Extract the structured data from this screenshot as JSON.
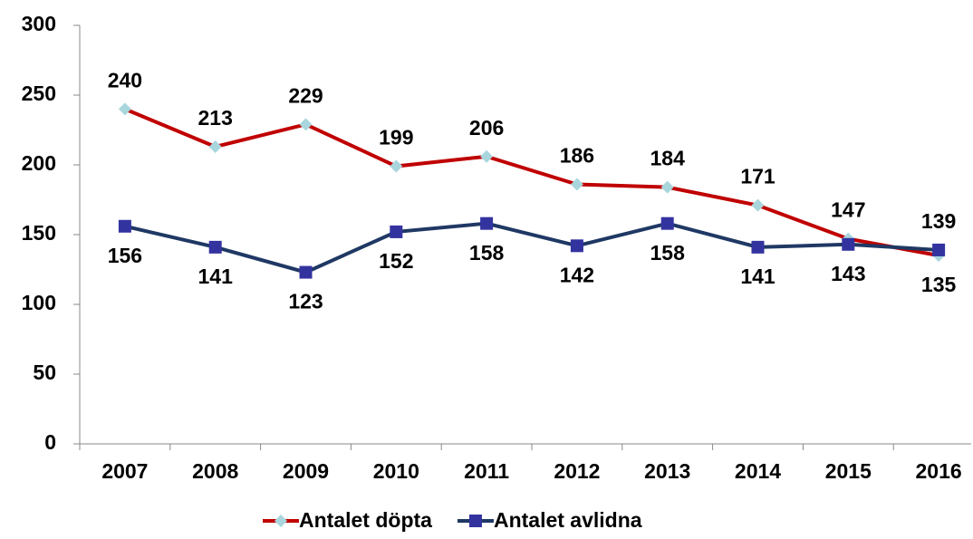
{
  "chart_data": {
    "type": "line",
    "categories": [
      "2007",
      "2008",
      "2009",
      "2010",
      "2011",
      "2012",
      "2013",
      "2014",
      "2015",
      "2016"
    ],
    "series": [
      {
        "name": "Antalet döpta",
        "color": "#c00000",
        "marker_color": "#a9d6dc",
        "marker": "diamond",
        "values": [
          240,
          213,
          229,
          199,
          206,
          186,
          184,
          171,
          147,
          135
        ]
      },
      {
        "name": "Antalet avlidna",
        "color": "#1f3864",
        "marker_color": "#3333a0",
        "marker": "square",
        "values": [
          156,
          141,
          123,
          152,
          158,
          142,
          158,
          141,
          143,
          139
        ]
      }
    ],
    "ylim": [
      0,
      300
    ],
    "yticks": [
      0,
      50,
      100,
      150,
      200,
      250,
      300
    ],
    "legend": "bottom"
  }
}
